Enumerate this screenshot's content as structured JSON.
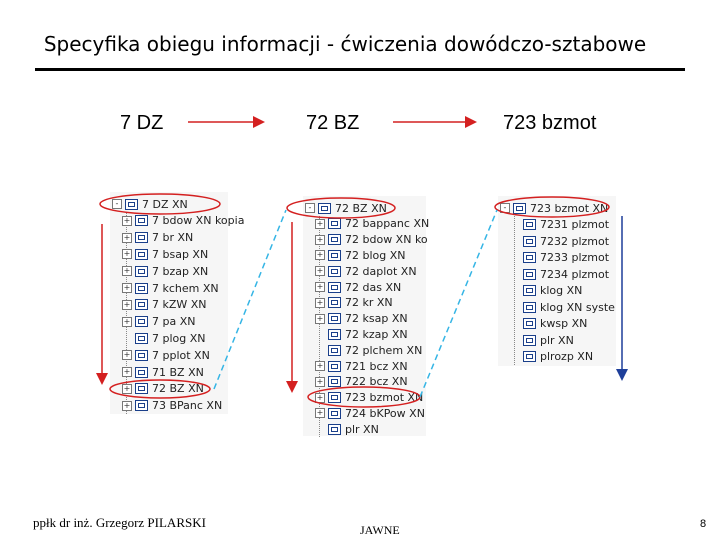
{
  "title": "Specyfika obiegu informacji - ćwiczenia dowódczo-sztabowe",
  "headers": {
    "left": "7 DZ",
    "middle": "72 BZ",
    "right": "723 bzmot"
  },
  "tree_left": [
    {
      "label": "7 DZ XN",
      "exp": "-"
    },
    {
      "label": "7 bdow XN kopia",
      "exp": "+"
    },
    {
      "label": "7 br XN",
      "exp": "+"
    },
    {
      "label": "7 bsap XN",
      "exp": "+"
    },
    {
      "label": "7 bzap XN",
      "exp": "+"
    },
    {
      "label": "7 kchem XN",
      "exp": "+"
    },
    {
      "label": "7 kZW XN",
      "exp": "+"
    },
    {
      "label": "7 pa XN",
      "exp": "+"
    },
    {
      "label": "7 plog XN",
      "exp": ""
    },
    {
      "label": "7 pplot XN",
      "exp": "+"
    },
    {
      "label": "71 BZ XN",
      "exp": "+"
    },
    {
      "label": "72 BZ XN",
      "exp": "+"
    },
    {
      "label": "73 BPanc XN",
      "exp": "+"
    }
  ],
  "tree_middle": [
    {
      "label": "72 BZ XN",
      "exp": "-"
    },
    {
      "label": "72 bappanc XN",
      "exp": "+"
    },
    {
      "label": "72 bdow XN ko",
      "exp": "+"
    },
    {
      "label": "72 blog XN",
      "exp": "+"
    },
    {
      "label": "72 daplot XN",
      "exp": "+"
    },
    {
      "label": "72 das XN",
      "exp": "+"
    },
    {
      "label": "72 kr XN",
      "exp": "+"
    },
    {
      "label": "72 ksap XN",
      "exp": "+"
    },
    {
      "label": "72 kzap XN",
      "exp": ""
    },
    {
      "label": "72 plchem XN",
      "exp": ""
    },
    {
      "label": "721 bcz XN",
      "exp": "+"
    },
    {
      "label": "722 bcz XN",
      "exp": "+"
    },
    {
      "label": "723 bzmot XN",
      "exp": "+"
    },
    {
      "label": "724 bKPow XN",
      "exp": "+"
    },
    {
      "label": "plr XN",
      "exp": ""
    }
  ],
  "tree_right": [
    {
      "label": "723 bzmot XN",
      "exp": "-"
    },
    {
      "label": "7231 plzmot",
      "exp": ""
    },
    {
      "label": "7232 plzmot",
      "exp": ""
    },
    {
      "label": "7233 plzmot",
      "exp": ""
    },
    {
      "label": "7234 plzmot",
      "exp": ""
    },
    {
      "label": "klog XN",
      "exp": ""
    },
    {
      "label": "klog XN syste",
      "exp": ""
    },
    {
      "label": "kwsp XN",
      "exp": ""
    },
    {
      "label": "plr XN",
      "exp": ""
    },
    {
      "label": "plrozp XN",
      "exp": ""
    }
  ],
  "footer": {
    "author": "ppłk dr inż. Grzegorz PILARSKI",
    "classification": "JAWNE",
    "page": "8"
  },
  "colors": {
    "red": "#d42020",
    "cyan": "#35b5e5",
    "blue": "#1e3f9a"
  }
}
